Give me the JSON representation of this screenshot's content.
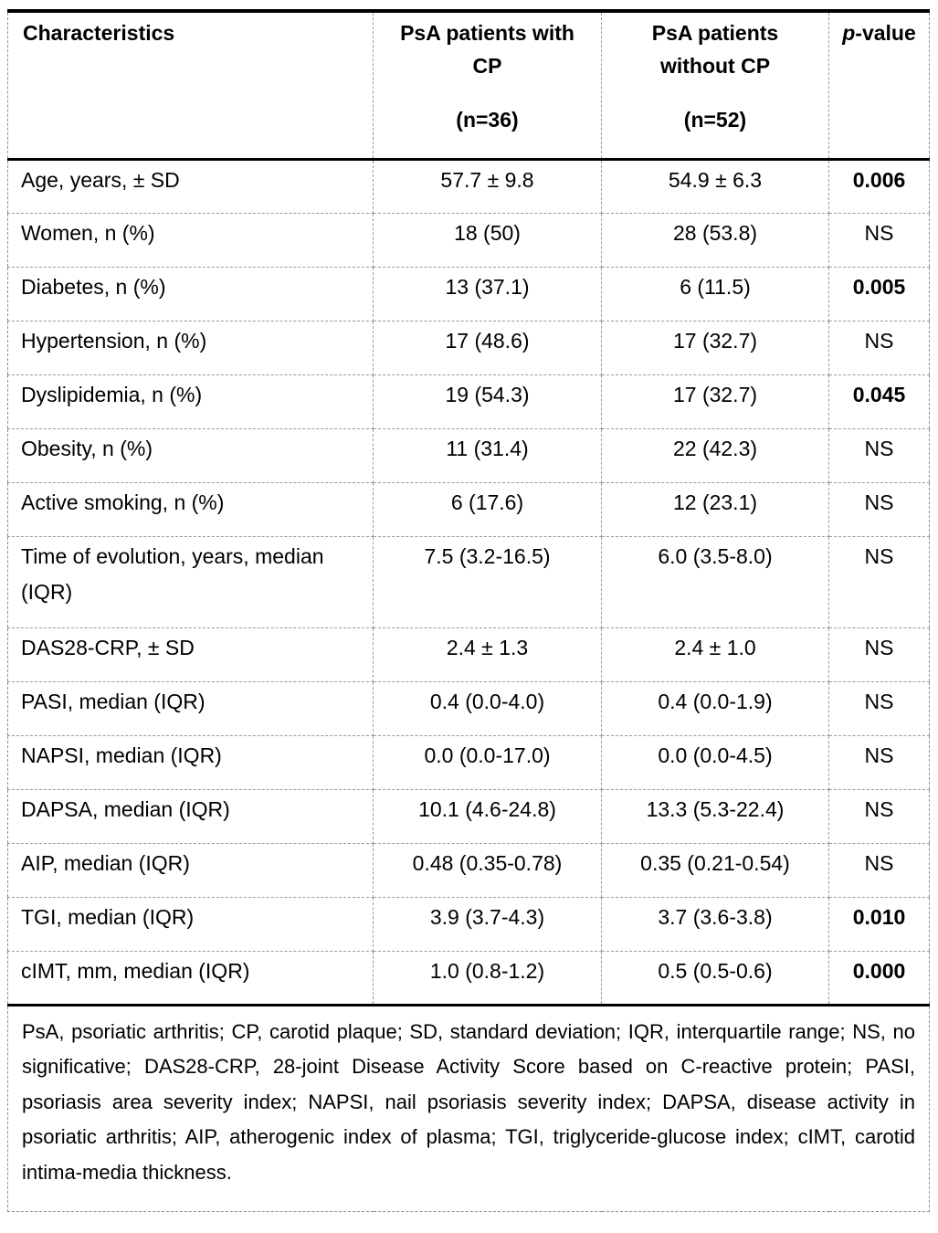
{
  "table": {
    "header": {
      "characteristics": "Characteristics",
      "col2_title": "PsA patients with CP",
      "col2_n": "(n=36)",
      "col3_title": "PsA patients without CP",
      "col3_n": "(n=52)",
      "p_italic": "p",
      "p_rest": "-value"
    },
    "rows": [
      {
        "label": "Age, years, ± SD",
        "with_cp": "57.7 ± 9.8",
        "without_cp": "54.9 ± 6.3",
        "p": "0.006",
        "emphasis": "bold"
      },
      {
        "label": "Women, n (%)",
        "with_cp": "18 (50)",
        "without_cp": "28 (53.8)",
        "p": "NS",
        "emphasis": "normal"
      },
      {
        "label": "Diabetes, n (%)",
        "with_cp": "13 (37.1)",
        "without_cp": "6 (11.5)",
        "p": "0.005",
        "emphasis": "bold"
      },
      {
        "label": "Hypertension, n (%)",
        "with_cp": "17 (48.6)",
        "without_cp": "17 (32.7)",
        "p": "NS",
        "emphasis": "normal"
      },
      {
        "label": "Dyslipidemia, n (%)",
        "with_cp": "19 (54.3)",
        "without_cp": "17 (32.7)",
        "p": "0.045",
        "emphasis": "bold"
      },
      {
        "label": "Obesity, n (%)",
        "with_cp": "11 (31.4)",
        "without_cp": "22 (42.3)",
        "p": "NS",
        "emphasis": "normal"
      },
      {
        "label": "Active smoking, n (%)",
        "with_cp": "6 (17.6)",
        "without_cp": "12 (23.1)",
        "p": "NS",
        "emphasis": "normal"
      },
      {
        "label": "Time of evolution, years, median (IQR)",
        "with_cp": "7.5 (3.2-16.5)",
        "without_cp": "6.0 (3.5-8.0)",
        "p": "NS",
        "emphasis": "normal"
      },
      {
        "label": "DAS28-CRP, ± SD",
        "with_cp": "2.4 ± 1.3",
        "without_cp": "2.4 ± 1.0",
        "p": "NS",
        "emphasis": "normal"
      },
      {
        "label": "PASI, median (IQR)",
        "with_cp": "0.4 (0.0-4.0)",
        "without_cp": "0.4 (0.0-1.9)",
        "p": "NS",
        "emphasis": "normal"
      },
      {
        "label": "NAPSI, median (IQR)",
        "with_cp": "0.0 (0.0-17.0)",
        "without_cp": "0.0 (0.0-4.5)",
        "p": "NS",
        "emphasis": "normal"
      },
      {
        "label": "DAPSA, median (IQR)",
        "with_cp": "10.1 (4.6-24.8)",
        "without_cp": "13.3 (5.3-22.4)",
        "p": "NS",
        "emphasis": "normal"
      },
      {
        "label": "AIP, median (IQR)",
        "with_cp": "0.48 (0.35-0.78)",
        "without_cp": "0.35 (0.21-0.54)",
        "p": "NS",
        "emphasis": "normal"
      },
      {
        "label": "TGI, median (IQR)",
        "with_cp": "3.9 (3.7-4.3)",
        "without_cp": "3.7 (3.6-3.8)",
        "p": "0.010",
        "emphasis": "bold"
      },
      {
        "label": "cIMT, mm, median (IQR)",
        "with_cp": "1.0 (0.8-1.2)",
        "without_cp": "0.5 (0.5-0.6)",
        "p": "0.000",
        "emphasis": "bold"
      }
    ],
    "footnote": "PsA, psoriatic arthritis; CP, carotid plaque; SD, standard deviation; IQR, interquartile range; NS, no significative; DAS28-CRP, 28-joint Disease Activity Score based on C-reactive protein; PASI, psoriasis area severity index; NAPSI, nail psoriasis severity index; DAPSA, disease activity in psoriatic arthritis; AIP, atherogenic index of plasma; TGI, triglyceride-glucose index; cIMT, carotid intima-media thickness."
  }
}
